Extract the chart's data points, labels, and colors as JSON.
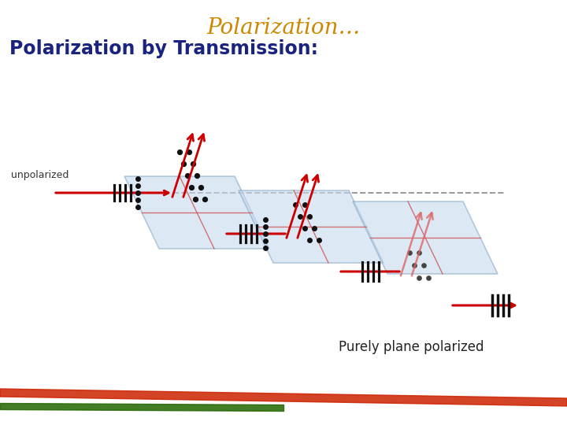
{
  "title": "Polarization…",
  "title_color": "#CC8800",
  "title_fontsize": 20,
  "title_style": "italic",
  "subtitle": "Polarization by Transmission:",
  "subtitle_color": "#1a237e",
  "subtitle_fontsize": 17,
  "caption": "Purely plane polarized",
  "caption_color": "#222222",
  "caption_fontsize": 12,
  "bg_color": "#ffffff",
  "unpolarized_label": "unpolarized",
  "beam_color": "#cc0000",
  "beam_color2": "#dd6666",
  "beam_color3": "#e8a0a0",
  "dashed_color": "#999999",
  "polarizer_fill": "#c5d9ee",
  "polarizer_edge": "#8aaac8",
  "dot_color": "#111111",
  "fig_width": 7.2,
  "fig_height": 5.4,
  "dpi": 100,
  "footer_colors": [
    "#cc2200",
    "#cc7700",
    "#226600"
  ]
}
